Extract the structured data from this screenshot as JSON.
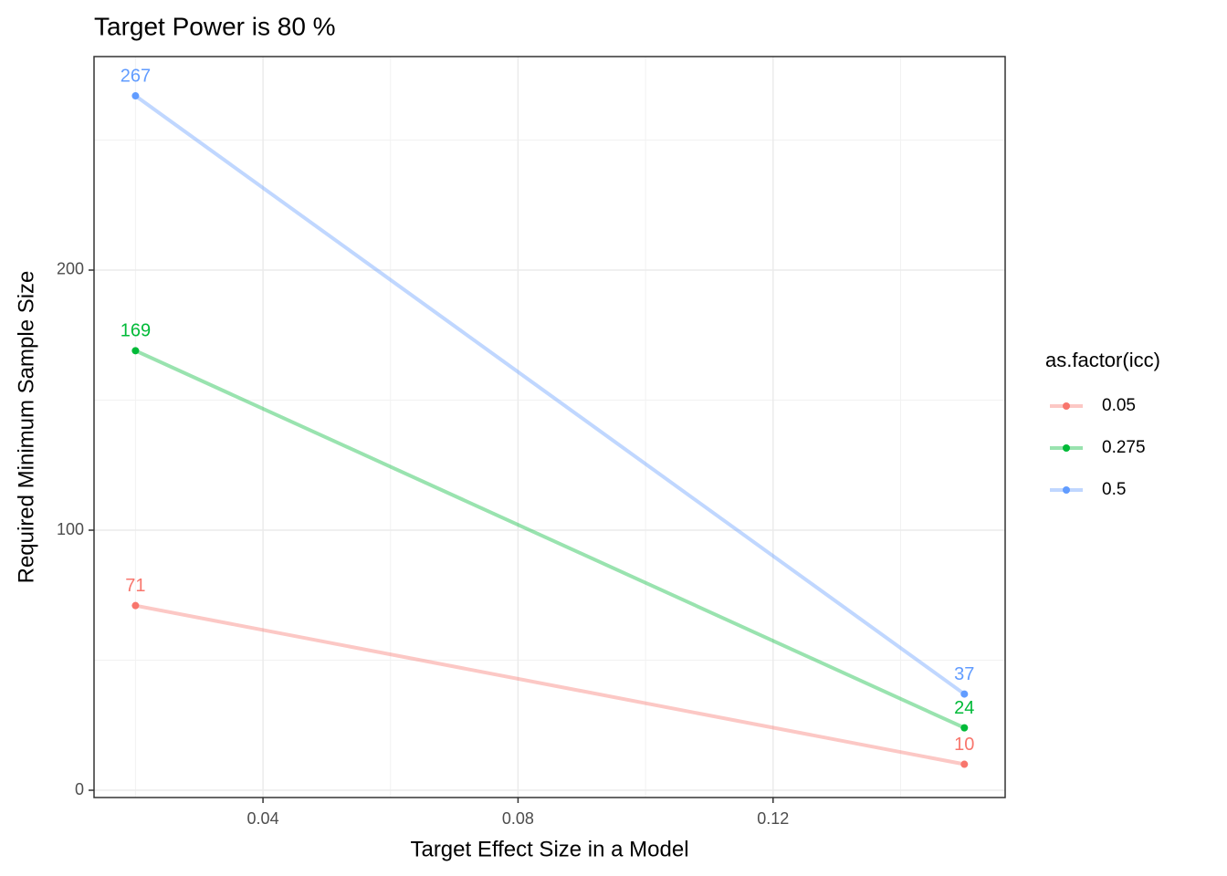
{
  "chart_data": {
    "type": "line",
    "title": "Target Power is 80 %",
    "x_label": "Target Effect Size in a Model",
    "y_label": "Required Minimum Sample Size",
    "legend_title": "as.factor(icc)",
    "legend_position": "right",
    "x": [
      0.02,
      0.15
    ],
    "series": [
      {
        "name": "0.05",
        "color": "#F8766D",
        "values": [
          71,
          10
        ]
      },
      {
        "name": "0.275",
        "color": "#00BA38",
        "values": [
          169,
          24
        ]
      },
      {
        "name": "0.5",
        "color": "#619CFF",
        "values": [
          267,
          37
        ]
      }
    ],
    "xlim": [
      0.0135,
      0.1564
    ],
    "xticks": [
      0.04,
      0.08,
      0.12
    ],
    "ylim": [
      -2.8,
      282.1
    ],
    "yticks": [
      0,
      100,
      200
    ],
    "grid": true,
    "data_labels": true
  }
}
